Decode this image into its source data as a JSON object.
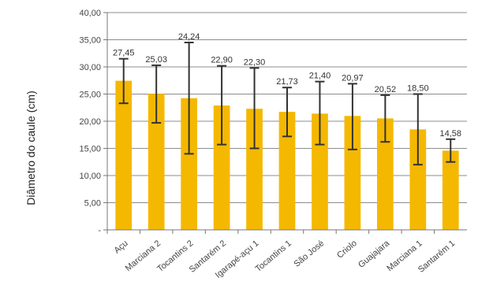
{
  "chart_data": {
    "type": "bar",
    "ylabel": "Diâmetro do caule (cm)",
    "ylim": [
      0,
      40
    ],
    "yticks": [
      "-",
      "5,00",
      "10,00",
      "15,00",
      "20,00",
      "25,00",
      "30,00",
      "35,00",
      "40,00"
    ],
    "grid": true,
    "bar_color": "#F5B800",
    "error_color": "#333333",
    "categories": [
      "Açu",
      "Marciana 2",
      "Tocantins 2",
      "Santarém 2",
      "Igarapé-açu 1",
      "Tocantins 1",
      "São José",
      "Criolo",
      "Guajajara",
      "Marciana 1",
      "Santarém 1"
    ],
    "values": [
      27.45,
      25.03,
      24.24,
      22.9,
      22.3,
      21.73,
      21.4,
      20.97,
      20.52,
      18.5,
      14.58
    ],
    "value_labels": [
      "27,45",
      "25,03",
      "24,24",
      "22,90",
      "22,30",
      "21,73",
      "21,40",
      "20,97",
      "20,52",
      "18,50",
      "14,58"
    ],
    "error_bars": [
      {
        "low": 23.3,
        "high": 31.5
      },
      {
        "low": 19.7,
        "high": 30.3
      },
      {
        "low": 14.0,
        "high": 34.5
      },
      {
        "low": 15.7,
        "high": 30.2
      },
      {
        "low": 15.0,
        "high": 29.8
      },
      {
        "low": 17.2,
        "high": 26.2
      },
      {
        "low": 15.7,
        "high": 27.3
      },
      {
        "low": 14.8,
        "high": 26.9
      },
      {
        "low": 16.2,
        "high": 24.8
      },
      {
        "low": 12.0,
        "high": 25.0
      },
      {
        "low": 12.5,
        "high": 16.7
      }
    ]
  }
}
